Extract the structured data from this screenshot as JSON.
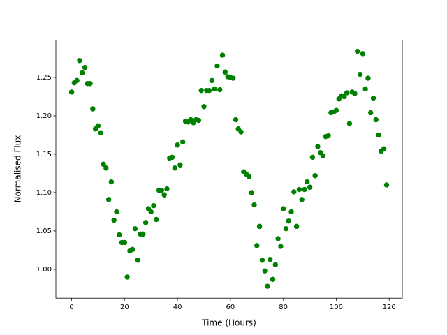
{
  "chart_data": {
    "type": "scatter",
    "x_label": "Time (Hours)",
    "y_label": "Normalised Flux",
    "color": "#008000",
    "x": [
      0,
      1,
      2,
      3,
      4,
      5,
      6,
      7,
      8,
      9,
      10,
      11,
      12,
      13,
      14,
      15,
      16,
      17,
      18,
      19,
      20,
      21,
      22,
      23,
      24,
      25,
      26,
      27,
      28,
      29,
      30,
      31,
      32,
      33,
      34,
      35,
      36,
      37,
      38,
      39,
      40,
      41,
      42,
      43,
      44,
      45,
      46,
      47,
      48,
      49,
      50,
      51,
      52,
      53,
      54,
      55,
      56,
      57,
      58,
      59,
      60,
      61,
      62,
      63,
      64,
      65,
      66,
      67,
      68,
      69,
      70,
      71,
      72,
      73,
      74,
      75,
      76,
      77,
      78,
      79,
      80,
      81,
      82,
      83,
      84,
      85,
      86,
      87,
      88,
      89,
      90,
      91,
      92,
      93,
      94,
      95,
      96,
      97,
      98,
      99,
      100,
      101,
      102,
      103,
      104,
      105,
      106,
      107,
      108,
      109,
      110,
      111,
      112,
      113,
      114,
      115,
      116,
      117,
      118,
      119
    ],
    "values": [
      1.231,
      1.243,
      1.246,
      1.272,
      1.256,
      1.263,
      1.242,
      1.242,
      1.209,
      1.183,
      1.187,
      1.178,
      1.137,
      1.132,
      1.091,
      1.114,
      1.064,
      1.075,
      1.045,
      1.035,
      1.035,
      0.99,
      1.024,
      1.026,
      1.053,
      1.012,
      1.046,
      1.046,
      1.061,
      1.079,
      1.075,
      1.083,
      1.065,
      1.103,
      1.103,
      1.097,
      1.105,
      1.145,
      1.146,
      1.132,
      1.162,
      1.136,
      1.166,
      1.193,
      1.192,
      1.195,
      1.191,
      1.195,
      1.194,
      1.233,
      1.212,
      1.233,
      1.233,
      1.246,
      1.235,
      1.265,
      1.234,
      1.279,
      1.257,
      1.251,
      1.25,
      1.249,
      1.195,
      1.183,
      1.179,
      1.127,
      1.124,
      1.121,
      1.1,
      1.084,
      1.031,
      1.056,
      1.012,
      0.998,
      0.978,
      1.013,
      0.987,
      1.006,
      1.04,
      1.03,
      1.079,
      1.053,
      1.063,
      1.075,
      1.101,
      1.056,
      1.104,
      1.091,
      1.104,
      1.114,
      1.107,
      1.146,
      1.122,
      1.16,
      1.152,
      1.148,
      1.173,
      1.174,
      1.204,
      1.205,
      1.207,
      1.222,
      1.226,
      1.225,
      1.23,
      1.19,
      1.231,
      1.229,
      1.284,
      1.254,
      1.281,
      1.235,
      1.249,
      1.204,
      1.223,
      1.195,
      1.175,
      1.154,
      1.157,
      1.11
    ],
    "xlim": [
      -5.95,
      124.95
    ],
    "xticks": [
      0,
      20,
      40,
      60,
      80,
      100,
      120
    ],
    "ylim": [
      0.9625,
      1.2985
    ],
    "yticks": [
      {
        "value": 1.0,
        "label": "1.00"
      },
      1.05,
      {
        "value": 1.1,
        "label": "1.10"
      },
      1.15,
      {
        "value": 1.2,
        "label": "1.20"
      },
      1.25
    ]
  }
}
